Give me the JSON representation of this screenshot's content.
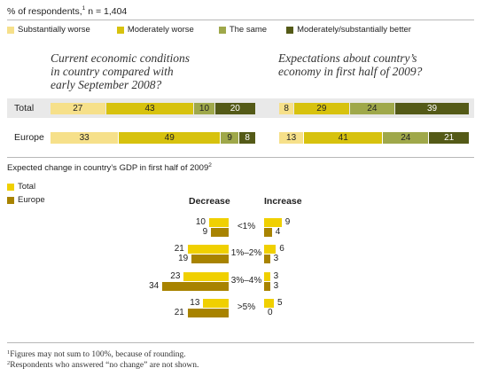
{
  "header": {
    "subtitle": "% of respondents,",
    "footnote_mark": "1",
    "n_text": "n = 1,404"
  },
  "legend_top": [
    {
      "label": "Substantially worse",
      "color": "#f6e08a"
    },
    {
      "label": "Moderately worse",
      "color": "#d7c20e"
    },
    {
      "label": "The same",
      "color": "#9fa84a"
    },
    {
      "label": "Moderately/substantially better",
      "color": "#545a17"
    }
  ],
  "chart_data": [
    {
      "type": "bar",
      "stacked": true,
      "title": "Current economic conditions in country compared with early September 2008?",
      "title_lines": [
        "Current economic conditions",
        "in country compared with",
        "early September 2008?"
      ],
      "categories": [
        "Total",
        "Europe"
      ],
      "series": [
        {
          "name": "Substantially worse",
          "values": [
            27,
            33
          ]
        },
        {
          "name": "Moderately worse",
          "values": [
            43,
            49
          ]
        },
        {
          "name": "The same",
          "values": [
            10,
            9
          ]
        },
        {
          "name": "Moderately/substantially better",
          "values": [
            20,
            8
          ]
        }
      ]
    },
    {
      "type": "bar",
      "stacked": true,
      "title": "Expectations about country's economy in first half of 2009?",
      "title_lines": [
        "Expectations about country’s",
        "economy in first half of 2009?"
      ],
      "categories": [
        "Total",
        "Europe"
      ],
      "series": [
        {
          "name": "Substantially worse",
          "values": [
            8,
            13
          ]
        },
        {
          "name": "Moderately worse",
          "values": [
            29,
            41
          ]
        },
        {
          "name": "The same",
          "values": [
            24,
            24
          ]
        },
        {
          "name": "Moderately/substantially better",
          "values": [
            39,
            21
          ]
        }
      ]
    },
    {
      "type": "bar",
      "title": "Expected change in country's GDP in first half of 2009",
      "title_text": "Expected change in country’s GDP in first half of 2009",
      "title_mark": "2",
      "categories": [
        "<1%",
        "1%–2%",
        "3%–4%",
        ">5%"
      ],
      "decrease_label": "Decrease",
      "increase_label": "Increase",
      "series": [
        {
          "name": "Total",
          "color": "#f0d000",
          "decrease": [
            10,
            21,
            23,
            13
          ],
          "increase": [
            9,
            6,
            3,
            5
          ]
        },
        {
          "name": "Europe",
          "color": "#a88300",
          "decrease": [
            9,
            19,
            34,
            21
          ],
          "increase": [
            4,
            3,
            3,
            0
          ]
        }
      ]
    }
  ],
  "footnotes": [
    {
      "mark": "1",
      "text": "Figures may not sum to 100%, because of rounding."
    },
    {
      "mark": "2",
      "text": "Respondents who answered “no change” are not shown."
    }
  ]
}
